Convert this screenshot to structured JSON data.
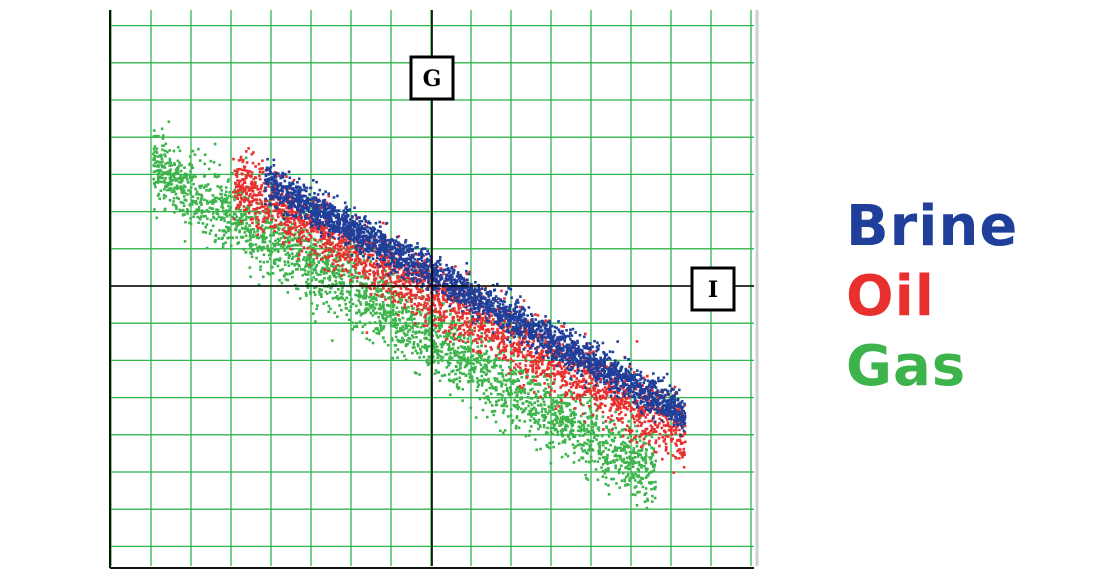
{
  "chart_data": {
    "type": "scatter",
    "title": "",
    "xlabel": "I",
    "ylabel": "G",
    "xlim": [
      -8,
      8
    ],
    "ylim": [
      -7.5,
      7.5
    ],
    "grid": true,
    "legend_position": "right",
    "series": [
      {
        "name": "Gas",
        "color": "#3cb44b",
        "trend": {
          "x_range": [
            -7.0,
            5.6
          ],
          "slope": -0.66,
          "intercept": -1.4,
          "spread": 0.5
        },
        "approx_points": 2800
      },
      {
        "name": "Oil",
        "color": "#e8302f",
        "trend": {
          "x_range": [
            -5.0,
            6.3
          ],
          "slope": -0.6,
          "intercept": -0.2,
          "spread": 0.42
        },
        "approx_points": 2500
      },
      {
        "name": "Brine",
        "color": "#1f3f9a",
        "trend": {
          "x_range": [
            -4.2,
            6.3
          ],
          "slope": -0.6,
          "intercept": 0.35,
          "spread": 0.25
        },
        "approx_points": 2800
      }
    ]
  },
  "legend": {
    "items": [
      {
        "label": "Brine",
        "color": "#1f3f9a"
      },
      {
        "label": "Oil",
        "color": "#e8302f"
      },
      {
        "label": "Gas",
        "color": "#3cb44b"
      }
    ]
  }
}
